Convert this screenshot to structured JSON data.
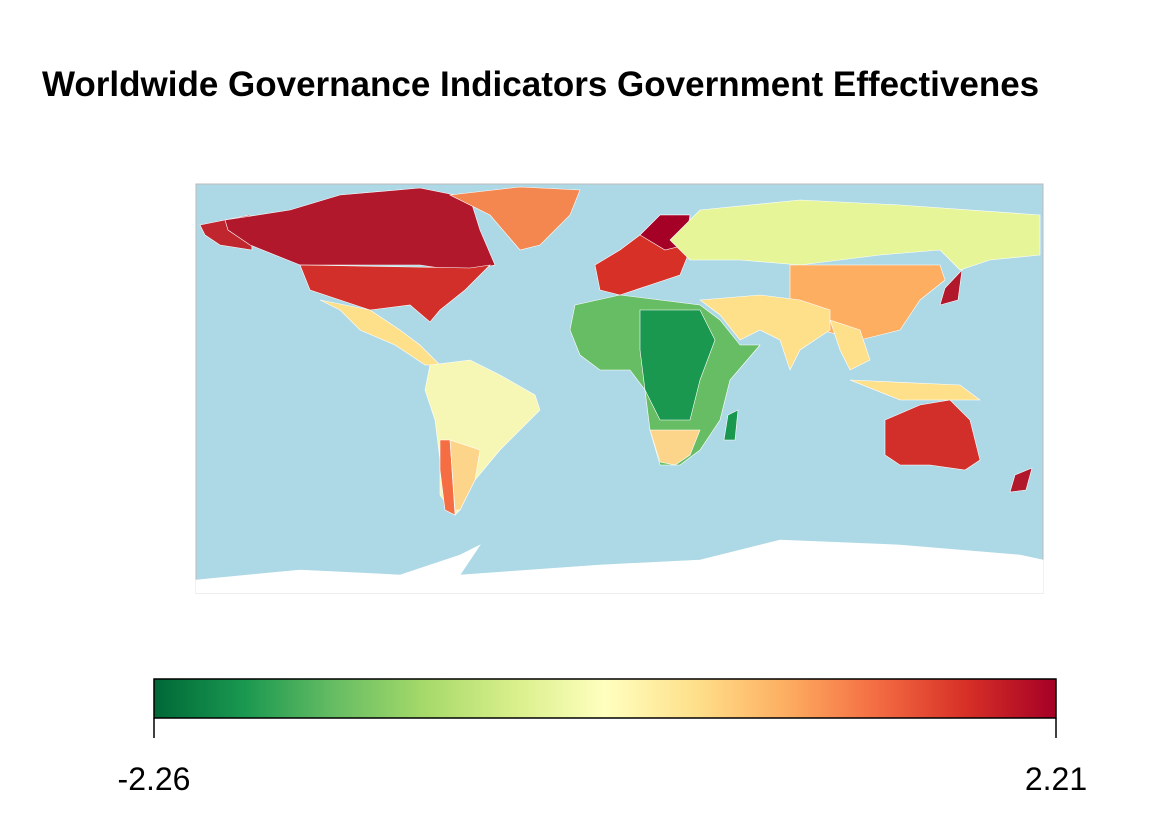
{
  "title": "Worldwide Governance Indicators  Government Effectivenes",
  "colorbar": {
    "colors": [
      "#006837",
      "#1a9850",
      "#66bd63",
      "#a6d96a",
      "#d9ef8b",
      "#ffffbf",
      "#fee08b",
      "#fdae61",
      "#f46d43",
      "#d73027",
      "#a50026"
    ],
    "lim": [
      -2.26,
      2.21
    ],
    "ticks": [
      -2.26,
      2.21
    ]
  }
}
